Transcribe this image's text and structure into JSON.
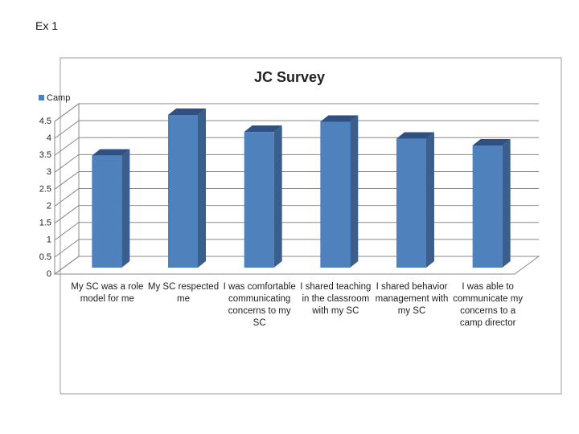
{
  "slide_title": "Ex 1",
  "chart_data": {
    "type": "bar3d",
    "title": "JC Survey",
    "categories": [
      "My SC was a role model for me",
      "My SC respected me",
      "I was comfortable communicating concerns to my SC",
      "I shared teaching in the classroom with my SC",
      "I shared behavior management with my SC",
      "I was able to communicate my concerns to a camp director"
    ],
    "series": [
      {
        "name": "Camp",
        "color": "#4f81bd",
        "values": [
          3.3,
          4.5,
          4.0,
          4.3,
          3.8,
          3.6
        ]
      }
    ],
    "ylim": [
      0,
      4.5
    ],
    "yticks": [
      0,
      0.5,
      1,
      1.5,
      2,
      2.5,
      3,
      3.5,
      4,
      4.5
    ],
    "grid": true,
    "legend": "top-left"
  }
}
